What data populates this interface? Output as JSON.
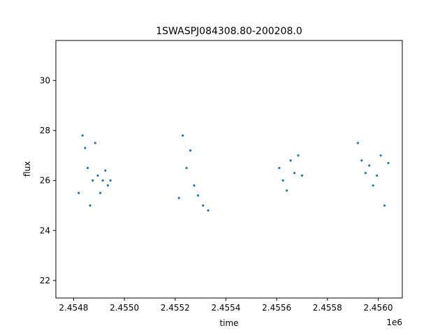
{
  "chart_data": {
    "type": "scatter",
    "title": "1SWASPJ084308.80-200208.0",
    "xlabel": "time",
    "ylabel": "flux",
    "x_offset_label": "1e6",
    "x_scale": 1000000,
    "xlim": [
      2454730,
      2456095
    ],
    "ylim": [
      21.3,
      31.6
    ],
    "x_ticks": [
      2454800,
      2455000,
      2455200,
      2455400,
      2455600,
      2455800,
      2456000
    ],
    "x_tick_labels": [
      "2.4548",
      "2.4550",
      "2.4552",
      "2.4554",
      "2.4556",
      "2.4558",
      "2.4560"
    ],
    "y_ticks": [
      22,
      24,
      26,
      28,
      30
    ],
    "y_tick_labels": [
      "22",
      "24",
      "26",
      "28",
      "30"
    ],
    "grid": false,
    "marker_color": "#1f77b4",
    "series": [
      {
        "x": [
          2454820,
          2454835,
          2454845,
          2454855,
          2454865,
          2454875,
          2454885,
          2454895,
          2454905,
          2454915,
          2454925,
          2454935,
          2454945,
          2455215,
          2455230,
          2455245,
          2455260,
          2455275,
          2455290,
          2455310,
          2455330,
          2455610,
          2455625,
          2455640,
          2455655,
          2455670,
          2455685,
          2455700,
          2455920,
          2455935,
          2455950,
          2455965,
          2455980,
          2455995,
          2456010,
          2456025,
          2456040
        ],
        "y": [
          25.5,
          27.8,
          27.3,
          26.5,
          25.0,
          26.0,
          27.5,
          26.2,
          25.5,
          26.0,
          26.4,
          25.8,
          26.0,
          25.3,
          27.8,
          26.5,
          27.2,
          25.8,
          25.4,
          25.0,
          24.8,
          26.5,
          26.0,
          25.6,
          26.8,
          26.3,
          27.0,
          26.2,
          27.5,
          26.8,
          26.3,
          26.6,
          25.8,
          26.2,
          27.0,
          25.0,
          26.7
        ]
      }
    ]
  }
}
